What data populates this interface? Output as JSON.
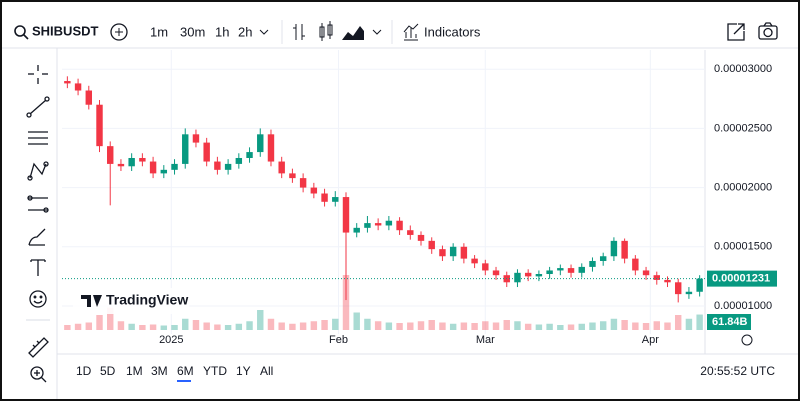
{
  "toolbar": {
    "symbol": "SHIBUSDT",
    "intervals": [
      "1m",
      "30m",
      "1h",
      "2h"
    ],
    "active_interval": 3,
    "indicators": "Indicators"
  },
  "footer": {
    "ranges": [
      "1D",
      "5D",
      "1M",
      "3M",
      "6M",
      "YTD",
      "1Y",
      "All"
    ],
    "active_range": 4,
    "clock": "20:55:52 UTC"
  },
  "logo": "TradingView",
  "chart_data": {
    "type": "candlestick",
    "up_color": "#089981",
    "down_color": "#f23645",
    "open": [
      2.9e-05,
      2.88e-05,
      2.82e-05,
      2.7e-05,
      2.35e-05,
      2.2e-05,
      2.18e-05,
      2.25e-05,
      2.22e-05,
      2.12e-05,
      2.15e-05,
      2.2e-05,
      2.45e-05,
      2.38e-05,
      2.22e-05,
      2.15e-05,
      2.2e-05,
      2.25e-05,
      2.3e-05,
      2.45e-05,
      2.22e-05,
      2.12e-05,
      2.08e-05,
      2e-05,
      1.95e-05,
      1.88e-05,
      1.92e-05,
      1.62e-05,
      1.66e-05,
      1.7e-05,
      1.68e-05,
      1.72e-05,
      1.64e-05,
      1.6e-05,
      1.55e-05,
      1.48e-05,
      1.42e-05,
      1.5e-05,
      1.4e-05,
      1.36e-05,
      1.3e-05,
      1.26e-05,
      1.2e-05,
      1.28e-05,
      1.25e-05,
      1.27e-05,
      1.3e-05,
      1.32e-05,
      1.28e-05,
      1.33e-05,
      1.38e-05,
      1.42e-05,
      1.55e-05,
      1.4e-05,
      1.3e-05,
      1.26e-05,
      1.22e-05,
      1.2e-05,
      1.1e-05,
      1.12e-05
    ],
    "high": [
      2.94e-05,
      2.92e-05,
      2.86e-05,
      2.74e-05,
      2.39e-05,
      2.24e-05,
      2.29e-05,
      2.29e-05,
      2.26e-05,
      2.19e-05,
      2.24e-05,
      2.5e-05,
      2.49e-05,
      2.42e-05,
      2.26e-05,
      2.24e-05,
      2.29e-05,
      2.34e-05,
      2.5e-05,
      2.49e-05,
      2.26e-05,
      2.16e-05,
      2.12e-05,
      2.04e-05,
      1.99e-05,
      1.97e-05,
      1.96e-05,
      1.7e-05,
      1.76e-05,
      1.74e-05,
      1.76e-05,
      1.75e-05,
      1.68e-05,
      1.63e-05,
      1.58e-05,
      1.51e-05,
      1.53e-05,
      1.53e-05,
      1.43e-05,
      1.39e-05,
      1.33e-05,
      1.29e-05,
      1.31e-05,
      1.31e-05,
      1.3e-05,
      1.33e-05,
      1.35e-05,
      1.35e-05,
      1.36e-05,
      1.41e-05,
      1.45e-05,
      1.58e-05,
      1.57e-05,
      1.43e-05,
      1.33e-05,
      1.29e-05,
      1.25e-05,
      1.23e-05,
      1.16e-05,
      1.26e-05
    ],
    "low": [
      2.84e-05,
      2.78e-05,
      2.66e-05,
      2.3e-05,
      1.85e-05,
      2.14e-05,
      2.14e-05,
      2.18e-05,
      2.08e-05,
      2.08e-05,
      2.11e-05,
      2.16e-05,
      2.34e-05,
      2.18e-05,
      2.11e-05,
      2.11e-05,
      2.16e-05,
      2.21e-05,
      2.26e-05,
      2.18e-05,
      2.08e-05,
      2.04e-05,
      1.96e-05,
      1.91e-05,
      1.84e-05,
      1.84e-05,
      1.05e-05,
      1.58e-05,
      1.62e-05,
      1.64e-05,
      1.64e-05,
      1.6e-05,
      1.56e-05,
      1.51e-05,
      1.44e-05,
      1.38e-05,
      1.38e-05,
      1.36e-05,
      1.32e-05,
      1.26e-05,
      1.22e-05,
      1.16e-05,
      1.16e-05,
      1.21e-05,
      1.21e-05,
      1.23e-05,
      1.26e-05,
      1.24e-05,
      1.24e-05,
      1.29e-05,
      1.34e-05,
      1.38e-05,
      1.36e-05,
      1.26e-05,
      1.22e-05,
      1.18e-05,
      1.16e-05,
      1.03e-05,
      1.06e-05,
      1.08e-05
    ],
    "close": [
      2.88e-05,
      2.82e-05,
      2.7e-05,
      2.35e-05,
      2.2e-05,
      2.18e-05,
      2.25e-05,
      2.22e-05,
      2.12e-05,
      2.15e-05,
      2.2e-05,
      2.45e-05,
      2.38e-05,
      2.22e-05,
      2.15e-05,
      2.2e-05,
      2.25e-05,
      2.3e-05,
      2.45e-05,
      2.22e-05,
      2.12e-05,
      2.08e-05,
      2e-05,
      1.95e-05,
      1.88e-05,
      1.92e-05,
      1.62e-05,
      1.66e-05,
      1.7e-05,
      1.68e-05,
      1.72e-05,
      1.64e-05,
      1.6e-05,
      1.55e-05,
      1.48e-05,
      1.42e-05,
      1.5e-05,
      1.4e-05,
      1.36e-05,
      1.3e-05,
      1.26e-05,
      1.2e-05,
      1.28e-05,
      1.25e-05,
      1.27e-05,
      1.3e-05,
      1.32e-05,
      1.28e-05,
      1.33e-05,
      1.38e-05,
      1.42e-05,
      1.55e-05,
      1.4e-05,
      1.3e-05,
      1.26e-05,
      1.22e-05,
      1.2e-05,
      1.1e-05,
      1.12e-05,
      1.231e-05
    ],
    "volume": [
      20,
      25,
      30,
      60,
      90,
      35,
      25,
      20,
      22,
      18,
      20,
      45,
      40,
      30,
      22,
      20,
      25,
      35,
      80,
      45,
      30,
      25,
      30,
      35,
      40,
      45,
      220,
      70,
      45,
      35,
      30,
      28,
      30,
      35,
      40,
      30,
      25,
      30,
      28,
      35,
      30,
      40,
      35,
      25,
      22,
      25,
      20,
      22,
      25,
      30,
      35,
      45,
      40,
      30,
      28,
      35,
      30,
      60,
      45,
      61.84
    ],
    "last_price_label": "0.00001231",
    "last_volume_label": "61.84B",
    "xlim": [
      -0.5,
      59.5
    ],
    "xticks": [
      {
        "value": 9.7,
        "label": "2025"
      },
      {
        "value": 25.3,
        "label": "Feb"
      },
      {
        "value": 39,
        "label": "Mar"
      },
      {
        "value": 54.4,
        "label": "Apr"
      }
    ],
    "ylim": [
      7.97e-06,
      3.12e-05
    ],
    "yticks": [
      {
        "value": 3e-05,
        "label": "0.00003000"
      },
      {
        "value": 2.5e-05,
        "label": "0.00002500"
      },
      {
        "value": 2e-05,
        "label": "0.00002000"
      },
      {
        "value": 1.5e-05,
        "label": "0.00001500"
      },
      {
        "value": 1e-05,
        "label": "0.00001000"
      }
    ],
    "grid": true
  }
}
